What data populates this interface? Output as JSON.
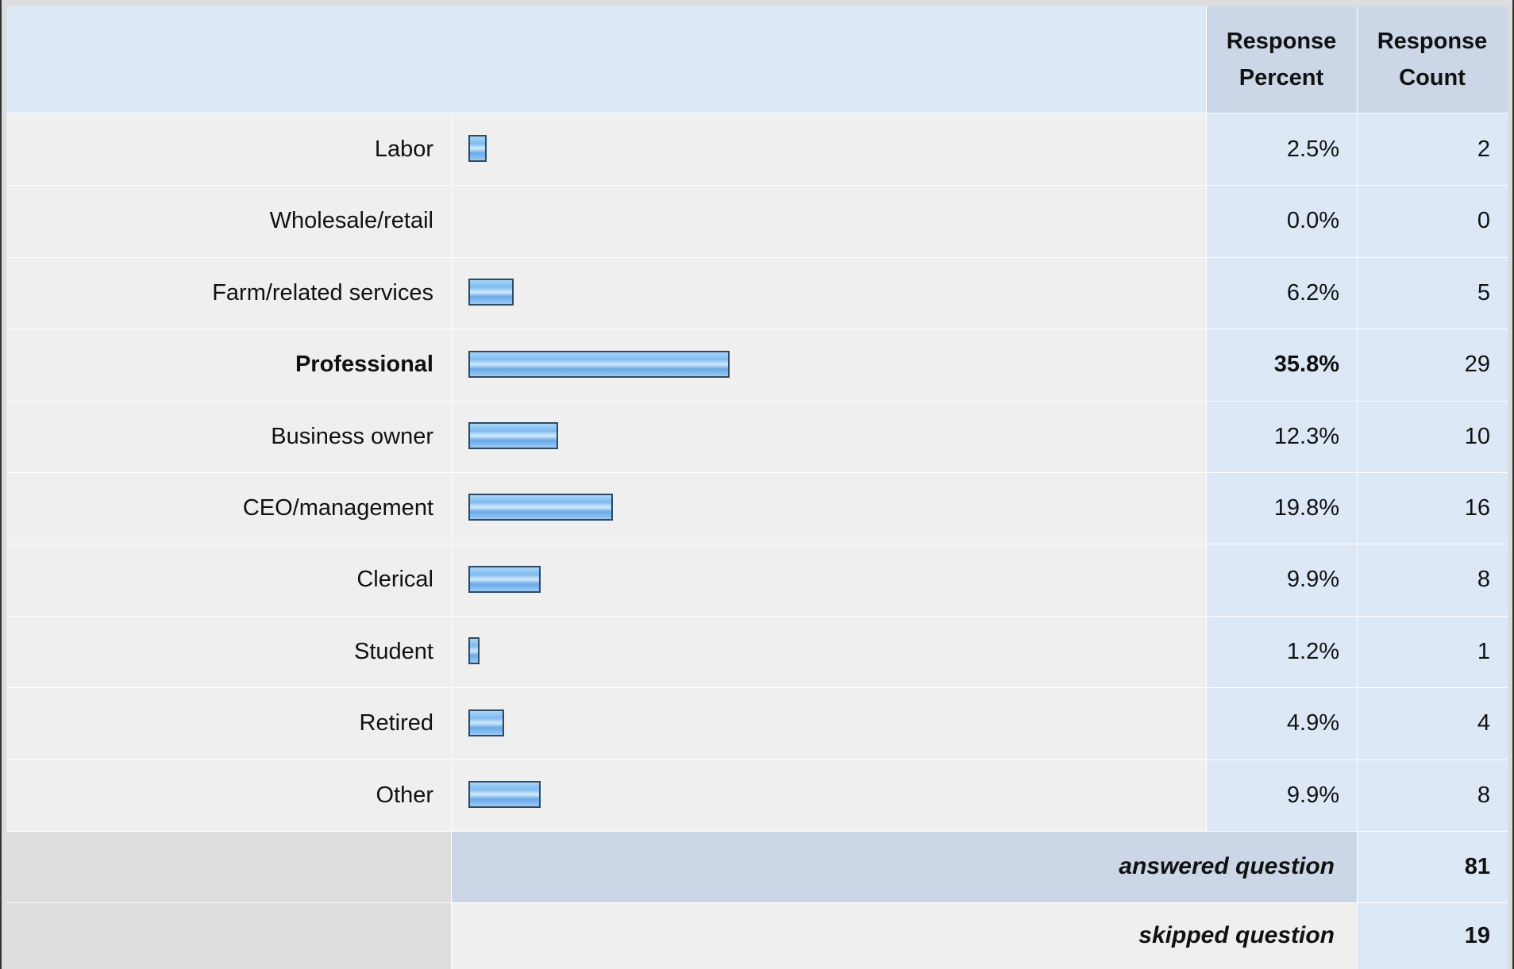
{
  "header": {
    "col_percent": "Response Percent",
    "col_count": "Response Count"
  },
  "rows": [
    {
      "label": "Labor",
      "percent_text": "2.5%",
      "count": "2"
    },
    {
      "label": "Wholesale/retail",
      "percent_text": "0.0%",
      "count": "0"
    },
    {
      "label": "Farm/related services",
      "percent_text": "6.2%",
      "count": "5"
    },
    {
      "label": "Professional",
      "percent_text": "35.8%",
      "count": "29"
    },
    {
      "label": "Business owner",
      "percent_text": "12.3%",
      "count": "10"
    },
    {
      "label": "CEO/management",
      "percent_text": "19.8%",
      "count": "16"
    },
    {
      "label": "Clerical",
      "percent_text": "9.9%",
      "count": "8"
    },
    {
      "label": "Student",
      "percent_text": "1.2%",
      "count": "1"
    },
    {
      "label": "Retired",
      "percent_text": "4.9%",
      "count": "4"
    },
    {
      "label": "Other",
      "percent_text": "9.9%",
      "count": "8"
    }
  ],
  "summary": {
    "answered_label": "answered question",
    "answered_value": "81",
    "skipped_label": "skipped question",
    "skipped_value": "19"
  },
  "colors": {
    "header_bg": "#dce8f6",
    "row_bg": "#efefef",
    "bar_fill": "#7fbaf0",
    "bar_border": "#2d4a64"
  },
  "chart_data": {
    "type": "bar",
    "orientation": "horizontal",
    "categories": [
      "Labor",
      "Wholesale/retail",
      "Farm/related services",
      "Professional",
      "Business owner",
      "CEO/management",
      "Clerical",
      "Student",
      "Retired",
      "Other"
    ],
    "values": [
      2.5,
      0.0,
      6.2,
      35.8,
      12.3,
      19.8,
      9.9,
      1.2,
      4.9,
      9.9
    ],
    "counts": [
      2,
      0,
      5,
      29,
      10,
      16,
      8,
      1,
      4,
      8
    ],
    "unit": "%",
    "xlim": [
      0,
      100
    ],
    "highlighted_category": "Professional",
    "title": "",
    "xlabel": "",
    "ylabel": ""
  }
}
